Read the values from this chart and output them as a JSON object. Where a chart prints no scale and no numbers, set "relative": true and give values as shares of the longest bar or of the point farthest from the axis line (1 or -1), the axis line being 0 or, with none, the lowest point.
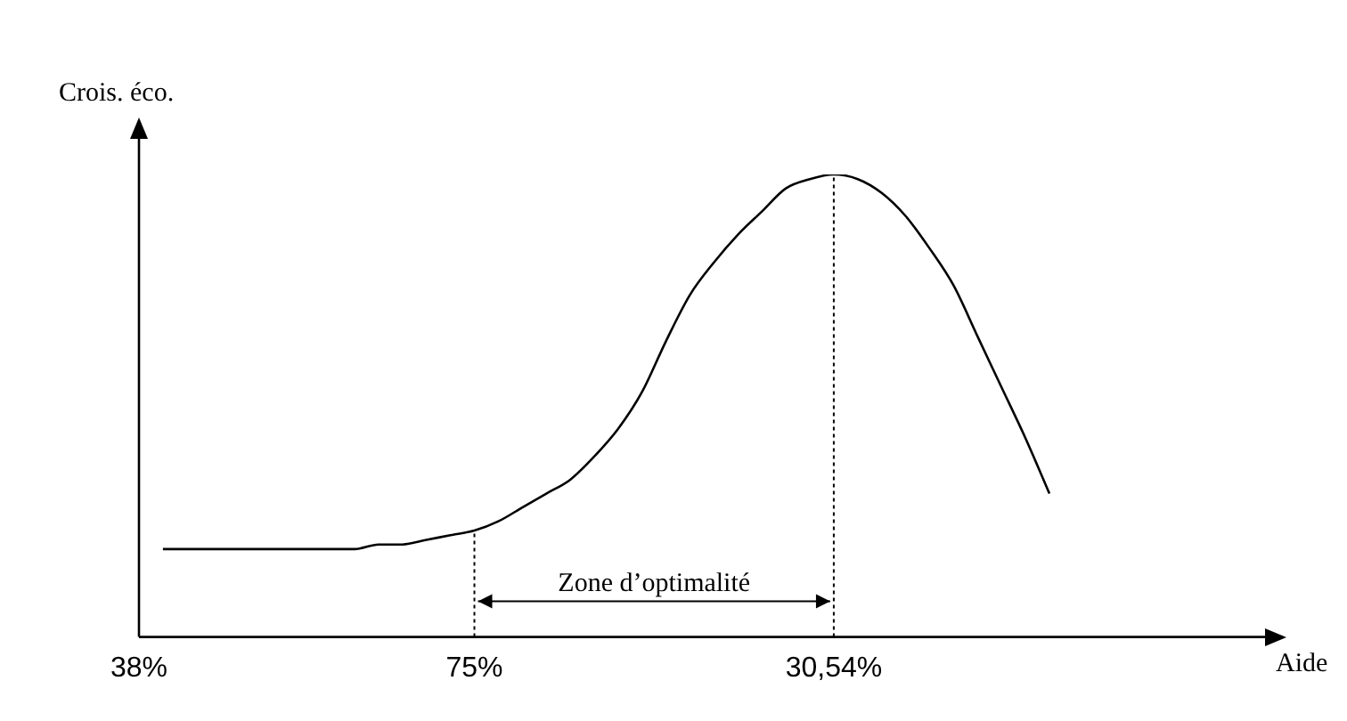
{
  "chart_data": {
    "type": "line",
    "relative": true,
    "ylabel": "Crois. éco.",
    "xlabel": "Aide",
    "categories": [
      "38%",
      null,
      null,
      null,
      null,
      null,
      null,
      null,
      null,
      null,
      null,
      null,
      null,
      null,
      "75%",
      null,
      null,
      null,
      null,
      null,
      null,
      null,
      null,
      null,
      null,
      null,
      null,
      null,
      null,
      "30,54%",
      null,
      null,
      null,
      null,
      null,
      null,
      null,
      null,
      null,
      null,
      null,
      null,
      null,
      null,
      null,
      null,
      null,
      null
    ],
    "series": [
      {
        "color": "#000000",
        "values": [
          null,
          0.19,
          0.19,
          0.19,
          0.19,
          0.19,
          0.19,
          0.19,
          0.19,
          0.19,
          0.2,
          0.2,
          0.21,
          0.22,
          0.23,
          0.25,
          0.28,
          0.31,
          0.34,
          0.39,
          0.45,
          0.53,
          0.64,
          0.74,
          0.81,
          0.87,
          0.92,
          0.97,
          0.99,
          1,
          0.99,
          0.96,
          0.91,
          0.84,
          0.76,
          0.65,
          0.54,
          0.43,
          0.31,
          null,
          null,
          null,
          null,
          null,
          null,
          null,
          null,
          null
        ]
      }
    ],
    "ref_lines": [
      {
        "axis": "x",
        "value": "75%",
        "line_style": "dotted"
      },
      {
        "axis": "x",
        "value": "30,54%",
        "line_style": "dotted"
      }
    ],
    "annotations": [
      "Zone d’optimalité"
    ],
    "marker": "none",
    "line_style": "solid",
    "grid": false,
    "legend": false
  }
}
